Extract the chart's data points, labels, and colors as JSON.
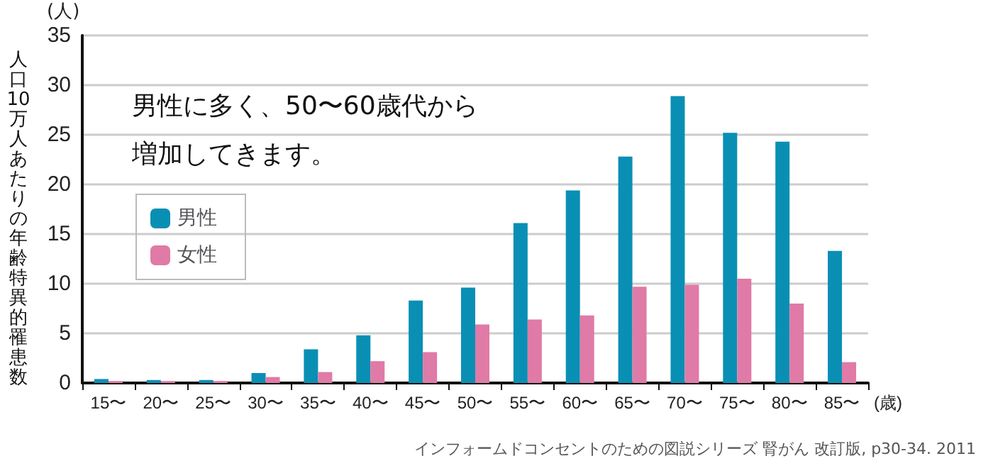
{
  "chart_data": {
    "type": "bar",
    "categories": [
      "15〜",
      "20〜",
      "25〜",
      "30〜",
      "35〜",
      "40〜",
      "45〜",
      "50〜",
      "55〜",
      "60〜",
      "65〜",
      "70〜",
      "75〜",
      "80〜",
      "85〜"
    ],
    "series": [
      {
        "name": "男性",
        "color": "#0a8fb4",
        "values": [
          0.4,
          0.3,
          0.3,
          1.0,
          3.4,
          4.8,
          8.3,
          9.6,
          16.1,
          19.4,
          22.8,
          28.9,
          25.2,
          24.3,
          13.3
        ]
      },
      {
        "name": "女性",
        "color": "#e07aa6",
        "values": [
          0.2,
          0.2,
          0.2,
          0.6,
          1.1,
          2.2,
          3.1,
          5.9,
          6.4,
          6.8,
          9.7,
          9.9,
          10.5,
          8.0,
          2.1
        ]
      }
    ],
    "ylabel": "人口10万人あたりの年齢特異的罹患数",
    "xlabel": "(歳)",
    "annotations": [
      "(人)",
      "男性に多く、50〜60歳代から",
      "増加してきます。",
      "インフォームドコンセントのための図説シリーズ 腎がん 改訂版, p30-34. 2011"
    ],
    "ylim": [
      0,
      35
    ],
    "yticks": [
      0,
      5,
      10,
      15,
      20,
      25,
      30,
      35
    ],
    "grid": "y",
    "legend": "left"
  }
}
